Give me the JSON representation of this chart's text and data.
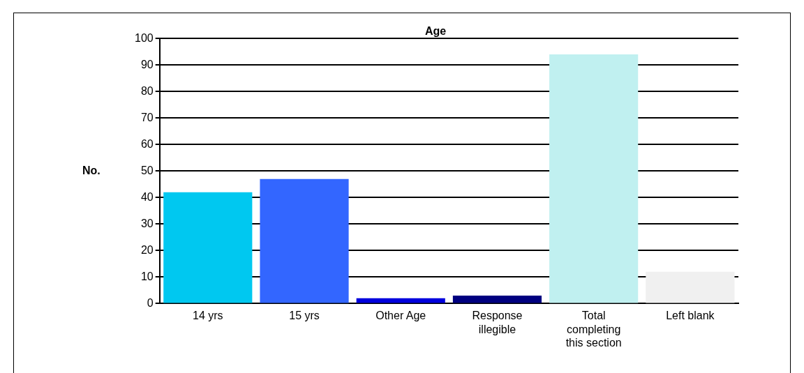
{
  "chart_data": {
    "type": "bar",
    "title": "Age",
    "ylabel": "No.",
    "categories": [
      "14 yrs",
      "15 yrs",
      "Other Age",
      "Response illegible",
      "Total completing this section",
      "Left blank"
    ],
    "values": [
      42,
      47,
      2,
      3,
      94,
      12
    ],
    "colors": [
      "#00c8f0",
      "#3366ff",
      "#0000dd",
      "#000080",
      "#c0f0f0",
      "#f0f0f0"
    ],
    "ylim": [
      0,
      100
    ],
    "yticks": [
      0,
      10,
      20,
      30,
      40,
      50,
      60,
      70,
      80,
      90,
      100
    ],
    "grid": "y",
    "legend": false
  }
}
